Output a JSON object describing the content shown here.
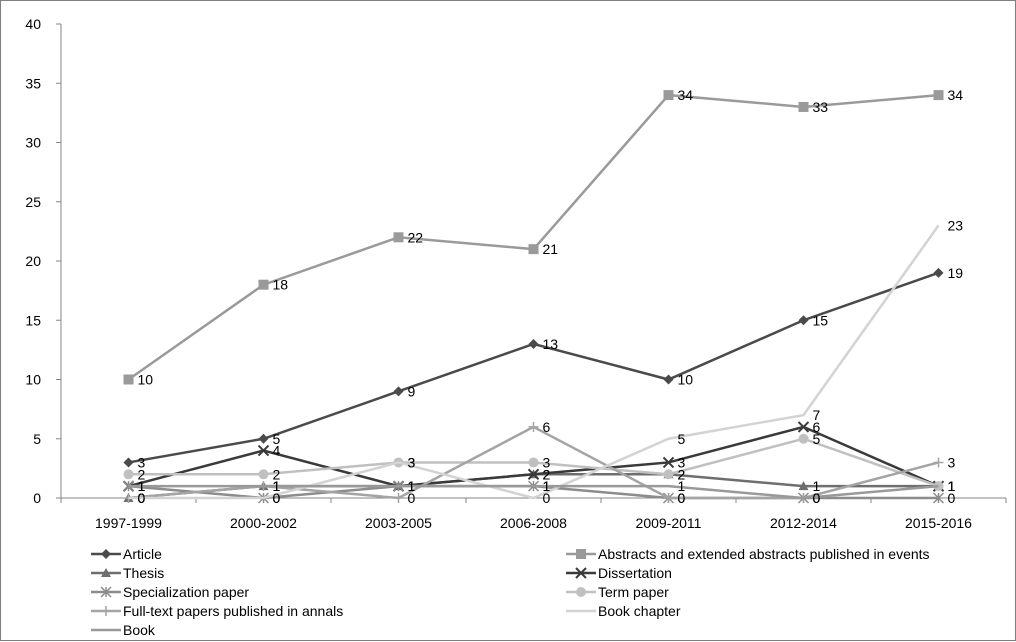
{
  "chart_data": {
    "type": "line",
    "title": "",
    "xlabel": "",
    "ylabel": "",
    "categories": [
      "1997-1999",
      "2000-2002",
      "2003-2005",
      "2006-2008",
      "2009-2011",
      "2012-2014",
      "2015-2016"
    ],
    "ylim": [
      0,
      40
    ],
    "yticks": [
      0,
      5,
      10,
      15,
      20,
      25,
      30,
      35,
      40
    ],
    "grid": false,
    "legend_position": "bottom",
    "series": [
      {
        "name": "Article",
        "values": [
          3,
          5,
          9,
          13,
          10,
          15,
          19
        ],
        "color": "#4a4a4a",
        "marker": "diamond"
      },
      {
        "name": "Abstracts and extended abstracts published in events",
        "values": [
          10,
          18,
          22,
          21,
          34,
          33,
          34
        ],
        "color": "#9a9a9a",
        "marker": "square"
      },
      {
        "name": "Thesis",
        "values": [
          0,
          1,
          1,
          2,
          2,
          1,
          1
        ],
        "color": "#6e6e6e",
        "marker": "triangle"
      },
      {
        "name": "Dissertation",
        "values": [
          1,
          4,
          1,
          2,
          3,
          6,
          1
        ],
        "color": "#3a3a3a",
        "marker": "x"
      },
      {
        "name": "Specialization paper",
        "values": [
          1,
          0,
          1,
          1,
          0,
          0,
          0
        ],
        "color": "#8c8c8c",
        "marker": "star"
      },
      {
        "name": "Term paper",
        "values": [
          2,
          2,
          3,
          3,
          2,
          5,
          1
        ],
        "color": "#c0c0c0",
        "marker": "circle"
      },
      {
        "name": "Full-text papers published in annals",
        "values": [
          0,
          1,
          0,
          6,
          0,
          0,
          3
        ],
        "color": "#a4a4a4",
        "marker": "plus"
      },
      {
        "name": "Book chapter",
        "values": [
          0,
          0,
          3,
          0,
          5,
          7,
          23
        ],
        "color": "#d3d3d3",
        "marker": "none"
      },
      {
        "name": "Book",
        "values": [
          1,
          1,
          1,
          1,
          1,
          0,
          1
        ],
        "color": "#999999",
        "marker": "none"
      }
    ]
  }
}
